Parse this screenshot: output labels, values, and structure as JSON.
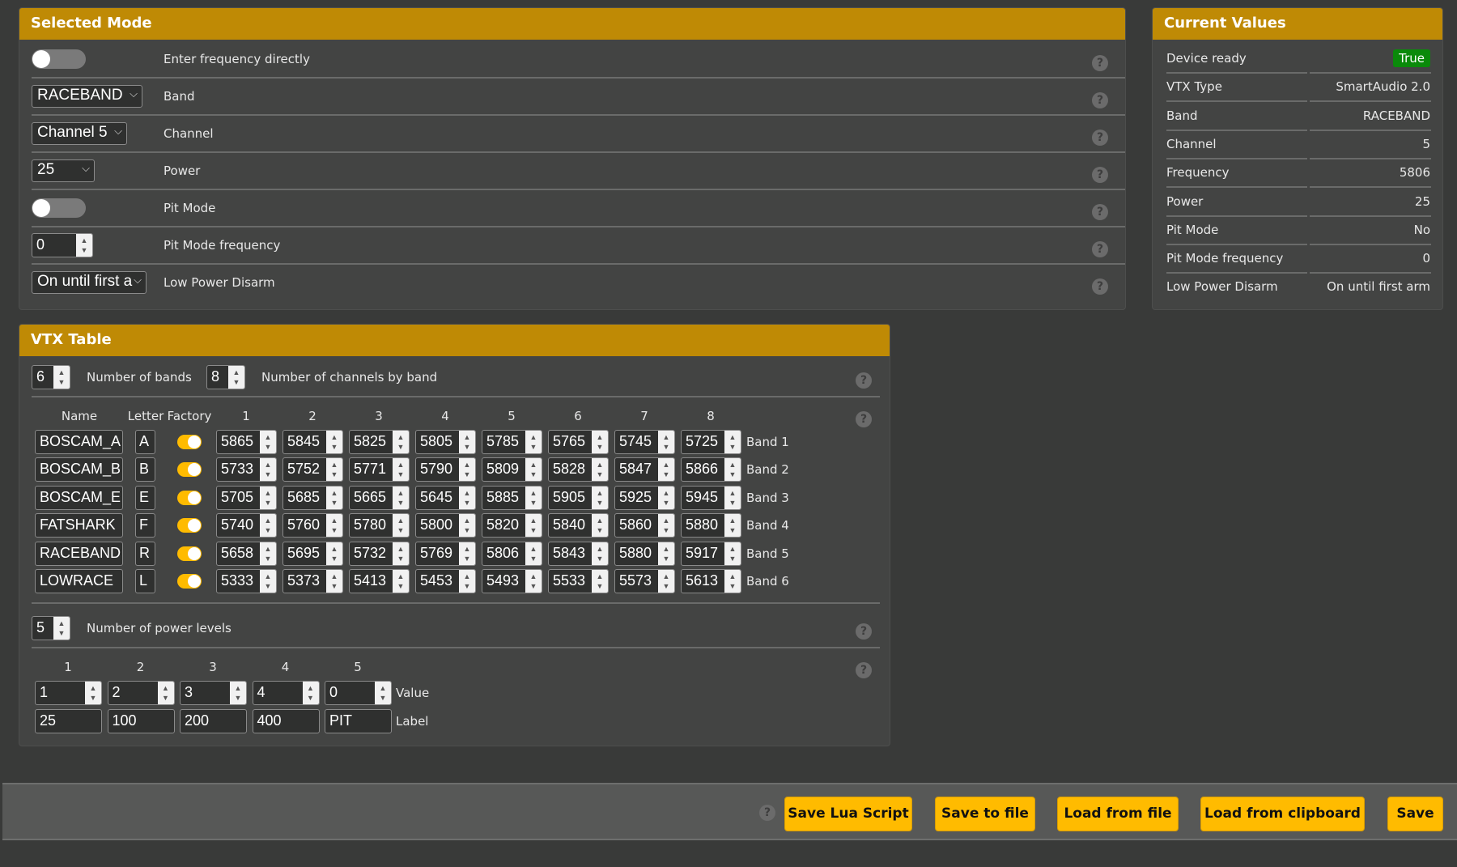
{
  "selected_mode": {
    "title": "Selected Mode",
    "rows": [
      {
        "type": "toggle",
        "label": "Enter frequency directly",
        "checked": false
      },
      {
        "type": "select",
        "label": "Band",
        "value": "RACEBAND"
      },
      {
        "type": "select",
        "label": "Channel",
        "value": "Channel 5"
      },
      {
        "type": "select",
        "label": "Power",
        "value": "25"
      },
      {
        "type": "toggle",
        "label": "Pit Mode",
        "checked": false
      },
      {
        "type": "number",
        "label": "Pit Mode frequency",
        "value": "0"
      },
      {
        "type": "select",
        "label": "Low Power Disarm",
        "value": "On until first a"
      }
    ],
    "help_icon": "question-circle-icon"
  },
  "current_values": {
    "title": "Current Values",
    "rows": [
      {
        "label": "Device ready",
        "value": "True",
        "badge_color": "#0a8a0a"
      },
      {
        "label": "VTX Type",
        "value": "SmartAudio 2.0"
      },
      {
        "label": "Band",
        "value": "RACEBAND"
      },
      {
        "label": "Channel",
        "value": "5"
      },
      {
        "label": "Frequency",
        "value": "5806"
      },
      {
        "label": "Power",
        "value": "25"
      },
      {
        "label": "Pit Mode",
        "value": "No"
      },
      {
        "label": "Pit Mode frequency",
        "value": "0"
      },
      {
        "label": "Low Power Disarm",
        "value": "On until first arm"
      }
    ]
  },
  "vtx_table": {
    "title": "VTX Table",
    "num_bands": "6",
    "num_bands_label": "Number of bands",
    "num_channels": "8",
    "num_channels_label": "Number of channels by band",
    "headers": {
      "name": "Name",
      "letter": "Letter",
      "factory": "Factory",
      "channels": [
        "1",
        "2",
        "3",
        "4",
        "5",
        "6",
        "7",
        "8"
      ]
    },
    "bands": [
      {
        "name": "BOSCAM_A",
        "letter": "A",
        "factory": true,
        "freqs": [
          "5865",
          "5845",
          "5825",
          "5805",
          "5785",
          "5765",
          "5745",
          "5725"
        ],
        "label": "Band 1"
      },
      {
        "name": "BOSCAM_B",
        "letter": "B",
        "factory": true,
        "freqs": [
          "5733",
          "5752",
          "5771",
          "5790",
          "5809",
          "5828",
          "5847",
          "5866"
        ],
        "label": "Band 2"
      },
      {
        "name": "BOSCAM_E",
        "letter": "E",
        "factory": true,
        "freqs": [
          "5705",
          "5685",
          "5665",
          "5645",
          "5885",
          "5905",
          "5925",
          "5945"
        ],
        "label": "Band 3"
      },
      {
        "name": "FATSHARK",
        "letter": "F",
        "factory": true,
        "freqs": [
          "5740",
          "5760",
          "5780",
          "5800",
          "5820",
          "5840",
          "5860",
          "5880"
        ],
        "label": "Band 4"
      },
      {
        "name": "RACEBAND",
        "letter": "R",
        "factory": true,
        "freqs": [
          "5658",
          "5695",
          "5732",
          "5769",
          "5806",
          "5843",
          "5880",
          "5917"
        ],
        "label": "Band 5"
      },
      {
        "name": "LOWRACE",
        "letter": "L",
        "factory": true,
        "freqs": [
          "5333",
          "5373",
          "5413",
          "5453",
          "5493",
          "5533",
          "5573",
          "5613"
        ],
        "label": "Band 6"
      }
    ],
    "num_power_levels": "5",
    "num_power_levels_label": "Number of power levels",
    "power_headers": [
      "1",
      "2",
      "3",
      "4",
      "5"
    ],
    "power_values": [
      "1",
      "2",
      "3",
      "4",
      "0"
    ],
    "power_labels": [
      "25",
      "100",
      "200",
      "400",
      "PIT"
    ],
    "value_row_label": "Value",
    "label_row_label": "Label"
  },
  "footer": {
    "buttons": [
      "Save Lua Script",
      "Save to file",
      "Load from file",
      "Load from clipboard",
      "Save"
    ]
  },
  "colors": {
    "header": "#bf8a05",
    "button": "#ffbb00",
    "toggle_on": "#ffbb00",
    "badge_true": "#0a8a0a"
  }
}
